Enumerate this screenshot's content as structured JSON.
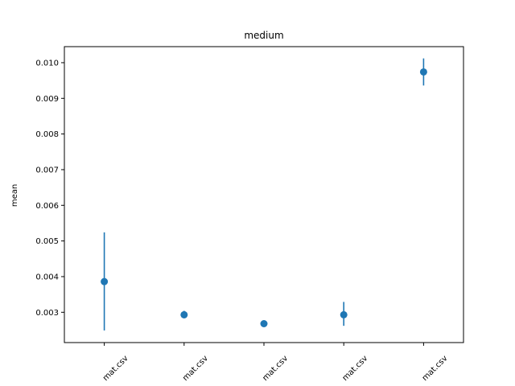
{
  "chart_data": {
    "type": "scatter",
    "title": "medium",
    "xlabel": "",
    "ylabel": "mean",
    "categories": [
      "mat.csv",
      "mat.csv",
      "mat.csv",
      "mat.csv",
      "mat.csv"
    ],
    "values": [
      0.00386,
      0.00293,
      0.00268,
      0.00293,
      0.00974
    ],
    "error_low": [
      0.00249,
      0.00283,
      0.00267,
      0.00262,
      0.00936
    ],
    "error_high": [
      0.00524,
      0.00304,
      0.00269,
      0.00329,
      0.01012
    ],
    "ylim": [
      0.00215,
      0.01045
    ],
    "yticks": [
      "0.003",
      "0.004",
      "0.005",
      "0.006",
      "0.007",
      "0.008",
      "0.009",
      "0.010"
    ],
    "ytick_values": [
      0.003,
      0.004,
      0.005,
      0.006,
      0.007,
      0.008,
      0.009,
      0.01
    ],
    "grid": false,
    "colors": {
      "marker": "#1f77b4",
      "axis": "#000000"
    }
  }
}
